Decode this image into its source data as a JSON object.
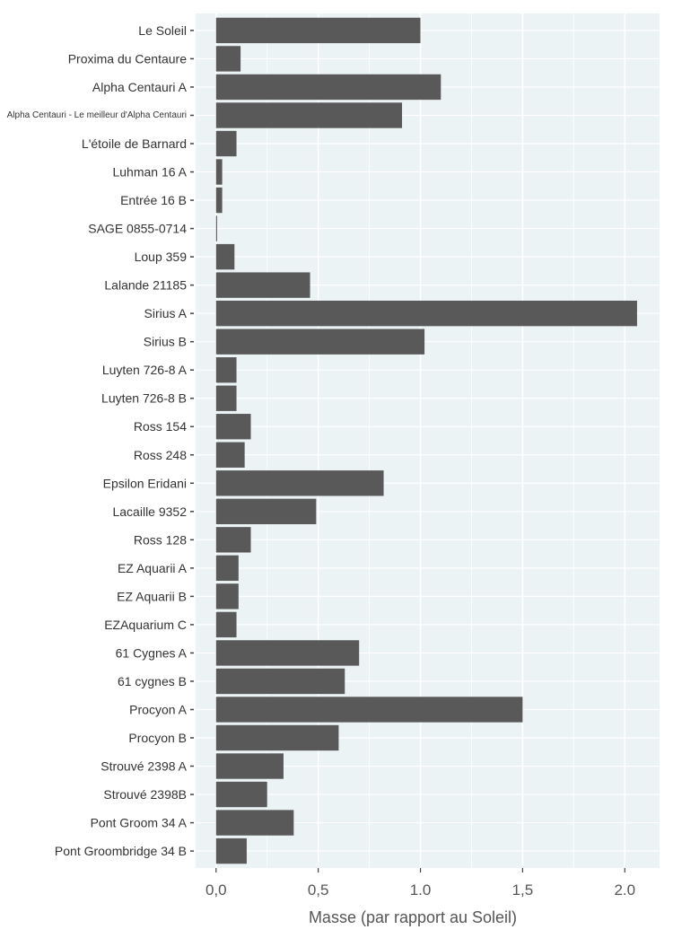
{
  "chart_data": {
    "type": "bar",
    "orientation": "horizontal",
    "xlabel": "Masse (par rapport au Soleil)",
    "xlim": [
      -0.1,
      2.17
    ],
    "x_ticks": [
      0,
      0.5,
      1,
      1.5,
      2
    ],
    "x_tick_labels": [
      "0,0",
      "0,5",
      "1.0",
      "1,5",
      "2.0"
    ],
    "grid": true,
    "background": "#ebf3f5",
    "bar_color": "#595959",
    "categories": [
      "Le Soleil",
      "Proxima du Centaure",
      "Alpha Centauri A",
      "Alpha Centauri - Le meilleur d'Alpha Centauri",
      "L'étoile de Barnard",
      "Luhman 16 A",
      "Entrée 16 B",
      "SAGE 0855-0714",
      "Loup 359",
      "Lalande 21185",
      "Sirius A",
      "Sirius B",
      "Luyten 726-8 A",
      "Luyten 726-8 B",
      "Ross 154",
      "Ross 248",
      "Epsilon Eridani",
      "Lacaille 9352",
      "Ross 128",
      "EZ Aquarii A",
      "EZ Aquarii B",
      "EZAquarium C",
      "61 Cygnes A",
      "61 cygnes B",
      "Procyon A",
      "Procyon B",
      "Strouvé 2398 A",
      "Strouvé 2398B",
      "Pont Groom 34 A",
      "Pont Groombridge 34 B"
    ],
    "values": [
      1.0,
      0.12,
      1.1,
      0.91,
      0.1,
      0.03,
      0.03,
      0.005,
      0.09,
      0.46,
      2.06,
      1.02,
      0.1,
      0.1,
      0.17,
      0.14,
      0.82,
      0.49,
      0.17,
      0.11,
      0.11,
      0.1,
      0.7,
      0.63,
      1.5,
      0.6,
      0.33,
      0.25,
      0.38,
      0.15
    ]
  }
}
